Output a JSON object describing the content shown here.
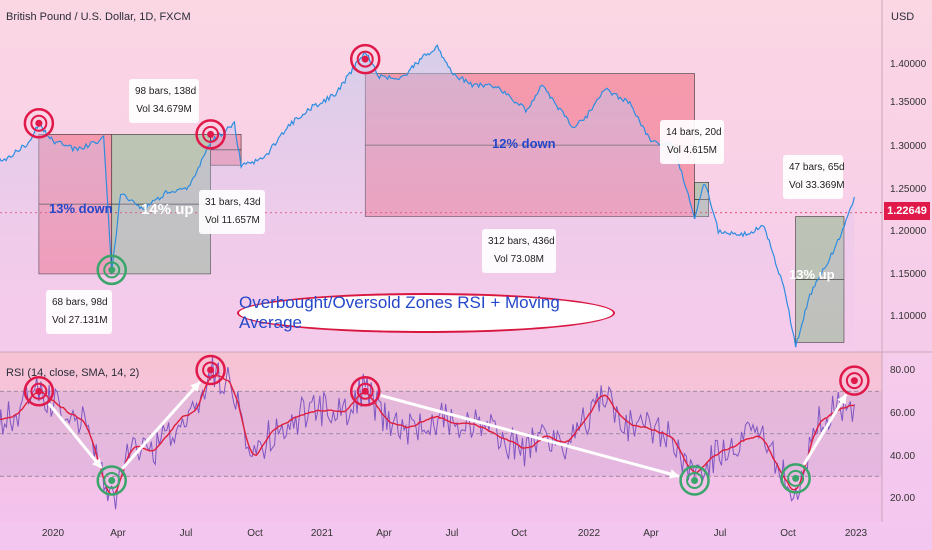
{
  "header": {
    "title": "British Pound / U.S. Dollar, 1D, FXCM",
    "currency": "USD",
    "rsi_label": "RSI (14, close, SMA, 14, 2)"
  },
  "banner": {
    "text": "Overbought/Oversold Zones RSI + Moving Average"
  },
  "colors": {
    "price_line": "#2e8de0",
    "rsi_line": "#7e57c2",
    "rsi_ma": "#e01e3c",
    "red_zone": "#f06a80",
    "green_zone": "#8ab88a",
    "circle_red": "#e0194a",
    "circle_green": "#3aa56a"
  },
  "chart_data": [
    {
      "type": "line",
      "title": "British Pound / U.S. Dollar, 1D, FXCM",
      "ylabel": "USD",
      "current_price": "1.22649",
      "ylim": [
        1.06,
        1.46
      ],
      "yticks": [
        "1.40000",
        "1.35000",
        "1.30000",
        "1.25000",
        "1.20000",
        "1.15000",
        "1.10000"
      ],
      "xticks": [
        "2020",
        "Apr",
        "Jul",
        "Oct",
        "2021",
        "Apr",
        "Jul",
        "Oct",
        "2022",
        "Apr",
        "Jul",
        "Oct",
        "2023"
      ],
      "series": [
        {
          "x": [
            "2019-10-15",
            "2019-11-01",
            "2019-12-01",
            "2019-12-13",
            "2020-01-01",
            "2020-02-01",
            "2020-03-01",
            "2020-03-09",
            "2020-03-20",
            "2020-04-01",
            "2020-05-01",
            "2020-06-01",
            "2020-07-01",
            "2020-08-01",
            "2020-09-01",
            "2020-09-10",
            "2020-09-25",
            "2020-10-15",
            "2020-11-15",
            "2020-12-15",
            "2021-01-15",
            "2021-02-24",
            "2021-03-15",
            "2021-04-15",
            "2021-05-15",
            "2021-06-01",
            "2021-06-20",
            "2021-07-20",
            "2021-08-20",
            "2021-09-30",
            "2021-10-20",
            "2021-11-30",
            "2021-12-15",
            "2022-01-13",
            "2022-02-15",
            "2022-03-15",
            "2022-04-15",
            "2022-05-13",
            "2022-05-27",
            "2022-06-14",
            "2022-07-15",
            "2022-08-15",
            "2022-09-10",
            "2022-09-26",
            "2022-10-15",
            "2022-11-15",
            "2022-12-05",
            "2022-12-14"
          ],
          "values": [
            1.285,
            1.29,
            1.31,
            1.33,
            1.31,
            1.3,
            1.31,
            1.318,
            1.155,
            1.25,
            1.23,
            1.25,
            1.255,
            1.31,
            1.33,
            1.282,
            1.285,
            1.295,
            1.33,
            1.35,
            1.365,
            1.415,
            1.385,
            1.385,
            1.41,
            1.42,
            1.39,
            1.375,
            1.375,
            1.345,
            1.375,
            1.327,
            1.335,
            1.37,
            1.355,
            1.31,
            1.305,
            1.222,
            1.262,
            1.205,
            1.2,
            1.21,
            1.14,
            1.07,
            1.13,
            1.18,
            1.22,
            1.245
          ]
        }
      ],
      "zones": [
        {
          "kind": "down",
          "label": "13% down",
          "bars": "68 bars, 98d",
          "vol": "Vol 27.131M"
        },
        {
          "kind": "up",
          "label": "14% up",
          "bars": "98 bars, 138d",
          "vol": "Vol 34.679M"
        },
        {
          "kind": "down",
          "label": "",
          "bars": "31 bars, 43d",
          "vol": "Vol 11.657M"
        },
        {
          "kind": "down",
          "label": "12% down",
          "bars": "312 bars, 436d",
          "vol": "Vol 73.08M"
        },
        {
          "kind": "up",
          "label": "",
          "bars": "14 bars, 20d",
          "vol": "Vol 4.615M"
        },
        {
          "kind": "up",
          "label": "13% up",
          "bars": "47 bars, 65d",
          "vol": "Vol 33.369M"
        }
      ]
    },
    {
      "type": "line",
      "title": "RSI (14, close, SMA, 14, 2)",
      "ylim": [
        10,
        90
      ],
      "yticks": [
        "80.00",
        "60.00",
        "40.00",
        "20.00"
      ],
      "series": [
        {
          "x": [
            "2019-10-15",
            "2019-11-15",
            "2019-12-13",
            "2020-01-15",
            "2020-02-15",
            "2020-03-20",
            "2020-04-15",
            "2020-05-15",
            "2020-06-15",
            "2020-07-15",
            "2020-07-31",
            "2020-08-31",
            "2020-09-25",
            "2020-10-25",
            "2020-11-25",
            "2020-12-25",
            "2021-01-25",
            "2021-02-24",
            "2021-03-25",
            "2021-04-25",
            "2021-05-25",
            "2021-06-25",
            "2021-07-25",
            "2021-08-25",
            "2021-09-29",
            "2021-10-25",
            "2021-11-25",
            "2021-12-25",
            "2022-01-10",
            "2022-02-10",
            "2022-03-10",
            "2022-04-10",
            "2022-05-13",
            "2022-06-10",
            "2022-07-10",
            "2022-08-10",
            "2022-09-26",
            "2022-10-25",
            "2022-11-25",
            "2022-12-14"
          ],
          "values": [
            55,
            60,
            70,
            62,
            55,
            17,
            45,
            42,
            55,
            62,
            80,
            72,
            38,
            52,
            58,
            62,
            60,
            72,
            55,
            52,
            58,
            56,
            55,
            48,
            42,
            50,
            45,
            60,
            70,
            55,
            52,
            50,
            30,
            40,
            45,
            50,
            20,
            55,
            62,
            64
          ]
        }
      ]
    }
  ]
}
